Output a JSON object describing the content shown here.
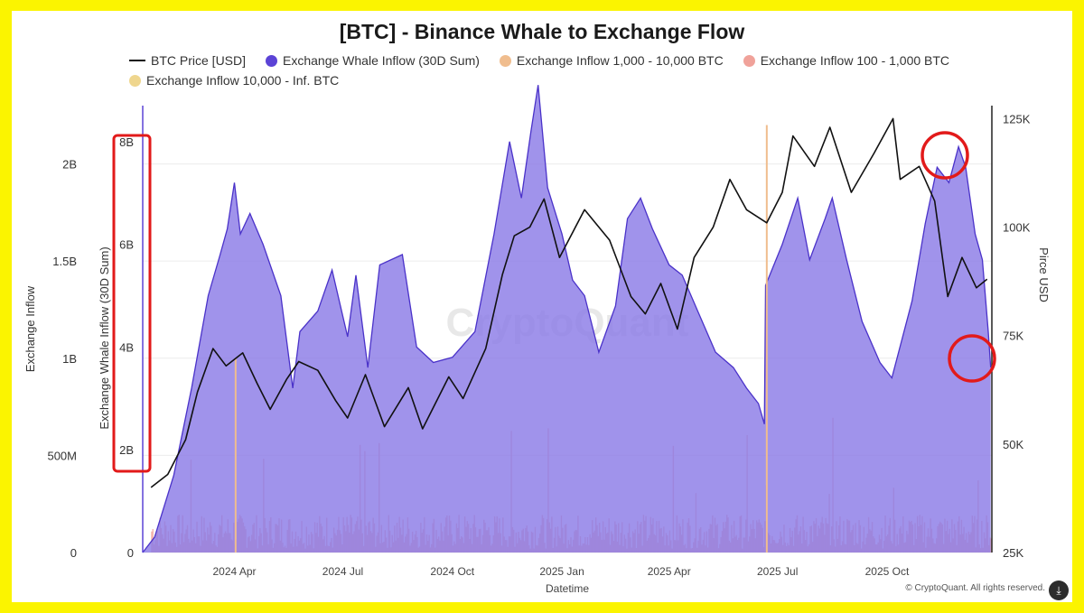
{
  "chart_data": {
    "type": "area",
    "title": "[BTC] - Binance Whale to Exchange Flow",
    "xlabel": "Datetime",
    "ylabel_left_outer": "Exchange Inflow",
    "ylabel_left_inner": "Exchange Whale Inflow (30D Sum)",
    "ylabel_right": "Pirce USD",
    "left_outer_ticks": [
      "0",
      "500M",
      "1B",
      "1.5B",
      "2B"
    ],
    "left_inner_ticks": [
      "0",
      "2B",
      "4B",
      "6B",
      "8B"
    ],
    "right_ticks": [
      "25K",
      "50K",
      "75K",
      "100K",
      "125K"
    ],
    "x_ticks": [
      "2024 Apr",
      "2024 Jul",
      "2024 Oct",
      "2025 Jan",
      "2025 Apr",
      "2025 Jul",
      "2025 Oct"
    ],
    "ylim_left_outer": [
      0,
      2300000000
    ],
    "ylim_left_inner": [
      0,
      8700000000
    ],
    "ylim_right": [
      25000,
      128000
    ],
    "xlim": [
      "2024-01-15",
      "2025-12-28"
    ],
    "legend": [
      {
        "name": "BTC Price [USD]",
        "kind": "line",
        "color": "#111111"
      },
      {
        "name": "Exchange Whale Inflow (30D Sum)",
        "kind": "dot",
        "color": "#5b43d6"
      },
      {
        "name": "Exchange Inflow 1,000 - 10,000 BTC",
        "kind": "dot",
        "color": "#f0bd8e"
      },
      {
        "name": "Exchange Inflow 100 - 1,000 BTC",
        "kind": "dot",
        "color": "#f0a29a"
      },
      {
        "name": "Exchange Inflow 10,000 - Inf. BTC",
        "kind": "dot",
        "color": "#efd68e"
      }
    ],
    "series": [
      {
        "name": "BTC Price [USD]",
        "axis": "right",
        "type": "line",
        "color": "#111111",
        "points": [
          [
            "2024-01-22",
            40000
          ],
          [
            "2024-02-05",
            43000
          ],
          [
            "2024-02-20",
            51000
          ],
          [
            "2024-03-01",
            62000
          ],
          [
            "2024-03-14",
            72000
          ],
          [
            "2024-03-25",
            68000
          ],
          [
            "2024-04-08",
            71000
          ],
          [
            "2024-04-20",
            64000
          ],
          [
            "2024-05-01",
            58000
          ],
          [
            "2024-05-15",
            65000
          ],
          [
            "2024-05-25",
            69000
          ],
          [
            "2024-06-10",
            67000
          ],
          [
            "2024-06-25",
            60000
          ],
          [
            "2024-07-05",
            56000
          ],
          [
            "2024-07-20",
            66000
          ],
          [
            "2024-08-05",
            54000
          ],
          [
            "2024-08-25",
            63000
          ],
          [
            "2024-09-06",
            53500
          ],
          [
            "2024-09-28",
            65500
          ],
          [
            "2024-10-10",
            60500
          ],
          [
            "2024-10-29",
            72000
          ],
          [
            "2024-11-12",
            89000
          ],
          [
            "2024-11-22",
            98000
          ],
          [
            "2024-12-05",
            100000
          ],
          [
            "2024-12-17",
            106500
          ],
          [
            "2024-12-30",
            93000
          ],
          [
            "2025-01-20",
            104000
          ],
          [
            "2025-02-10",
            97000
          ],
          [
            "2025-02-28",
            84000
          ],
          [
            "2025-03-12",
            80000
          ],
          [
            "2025-03-25",
            87000
          ],
          [
            "2025-04-08",
            76500
          ],
          [
            "2025-04-22",
            93000
          ],
          [
            "2025-05-08",
            100000
          ],
          [
            "2025-05-22",
            111000
          ],
          [
            "2025-06-05",
            104000
          ],
          [
            "2025-06-22",
            101000
          ],
          [
            "2025-07-05",
            108000
          ],
          [
            "2025-07-14",
            121000
          ],
          [
            "2025-08-01",
            114000
          ],
          [
            "2025-08-14",
            123000
          ],
          [
            "2025-09-01",
            108000
          ],
          [
            "2025-09-20",
            117000
          ],
          [
            "2025-10-06",
            125000
          ],
          [
            "2025-10-12",
            111000
          ],
          [
            "2025-10-28",
            114000
          ],
          [
            "2025-11-10",
            106000
          ],
          [
            "2025-11-21",
            84000
          ],
          [
            "2025-12-03",
            93000
          ],
          [
            "2025-12-15",
            86000
          ],
          [
            "2025-12-24",
            88000
          ]
        ]
      },
      {
        "name": "Exchange Whale Inflow (30D Sum)",
        "axis": "left_inner",
        "type": "area",
        "color": "#5b43d6",
        "points": [
          [
            "2024-01-15",
            0
          ],
          [
            "2024-01-25",
            300000000
          ],
          [
            "2024-02-10",
            1500000000
          ],
          [
            "2024-02-25",
            3200000000
          ],
          [
            "2024-03-10",
            5000000000
          ],
          [
            "2024-03-20",
            5800000000
          ],
          [
            "2024-03-26",
            6300000000
          ],
          [
            "2024-04-01",
            7200000000
          ],
          [
            "2024-04-06",
            6200000000
          ],
          [
            "2024-04-14",
            6600000000
          ],
          [
            "2024-04-25",
            6000000000
          ],
          [
            "2024-05-10",
            5000000000
          ],
          [
            "2024-05-20",
            3200000000
          ],
          [
            "2024-05-26",
            4300000000
          ],
          [
            "2024-06-10",
            4700000000
          ],
          [
            "2024-06-22",
            5500000000
          ],
          [
            "2024-07-05",
            4200000000
          ],
          [
            "2024-07-12",
            5400000000
          ],
          [
            "2024-07-22",
            3600000000
          ],
          [
            "2024-08-01",
            5600000000
          ],
          [
            "2024-08-20",
            5800000000
          ],
          [
            "2024-09-01",
            4000000000
          ],
          [
            "2024-09-15",
            3700000000
          ],
          [
            "2024-10-01",
            3800000000
          ],
          [
            "2024-10-20",
            4300000000
          ],
          [
            "2024-11-05",
            6200000000
          ],
          [
            "2024-11-18",
            8000000000
          ],
          [
            "2024-11-28",
            6900000000
          ],
          [
            "2024-12-06",
            8200000000
          ],
          [
            "2024-12-12",
            9100000000
          ],
          [
            "2024-12-20",
            7100000000
          ],
          [
            "2025-01-01",
            6200000000
          ],
          [
            "2025-01-10",
            5300000000
          ],
          [
            "2025-01-20",
            5000000000
          ],
          [
            "2025-02-01",
            3900000000
          ],
          [
            "2025-02-15",
            4800000000
          ],
          [
            "2025-02-25",
            6500000000
          ],
          [
            "2025-03-08",
            6900000000
          ],
          [
            "2025-03-18",
            6300000000
          ],
          [
            "2025-04-01",
            5600000000
          ],
          [
            "2025-04-12",
            5400000000
          ],
          [
            "2025-04-25",
            4700000000
          ],
          [
            "2025-05-10",
            3900000000
          ],
          [
            "2025-05-25",
            3600000000
          ],
          [
            "2025-06-05",
            3200000000
          ],
          [
            "2025-06-15",
            2900000000
          ],
          [
            "2025-06-20",
            2500000000
          ],
          [
            "2025-06-21",
            5200000000
          ],
          [
            "2025-07-05",
            6000000000
          ],
          [
            "2025-07-18",
            6900000000
          ],
          [
            "2025-07-28",
            5700000000
          ],
          [
            "2025-08-10",
            6500000000
          ],
          [
            "2025-08-16",
            6900000000
          ],
          [
            "2025-08-28",
            5700000000
          ],
          [
            "2025-09-10",
            4500000000
          ],
          [
            "2025-09-25",
            3700000000
          ],
          [
            "2025-10-05",
            3400000000
          ],
          [
            "2025-10-22",
            4900000000
          ],
          [
            "2025-11-02",
            6400000000
          ],
          [
            "2025-11-12",
            7500000000
          ],
          [
            "2025-11-22",
            7200000000
          ],
          [
            "2025-11-30",
            7900000000
          ],
          [
            "2025-12-06",
            7500000000
          ],
          [
            "2025-12-14",
            6200000000
          ],
          [
            "2025-12-20",
            5700000000
          ],
          [
            "2025-12-25",
            4300000000
          ],
          [
            "2025-12-27",
            3600000000
          ]
        ]
      },
      {
        "name": "Exchange Inflow 100 - 1,000 BTC",
        "axis": "left_outer",
        "type": "bar",
        "color": "#f0a29a",
        "summary": "Daily inflow bars, mostly between 50M and 300M"
      },
      {
        "name": "Exchange Inflow 1,000 - 10,000 BTC",
        "axis": "left_outer",
        "type": "bar",
        "color": "#f0bd8e",
        "spikes": [
          [
            "2024-04-02",
            1000000000
          ],
          [
            "2025-06-22",
            2200000000
          ]
        ]
      }
    ],
    "annotations": [
      "red box around left inner axis ticks",
      "red circle near 2025-11-30 peak",
      "red circle near 2025-12-27 end"
    ]
  },
  "watermark": "CryptoQuant",
  "copyright": "© CryptoQuant. All rights reserved."
}
